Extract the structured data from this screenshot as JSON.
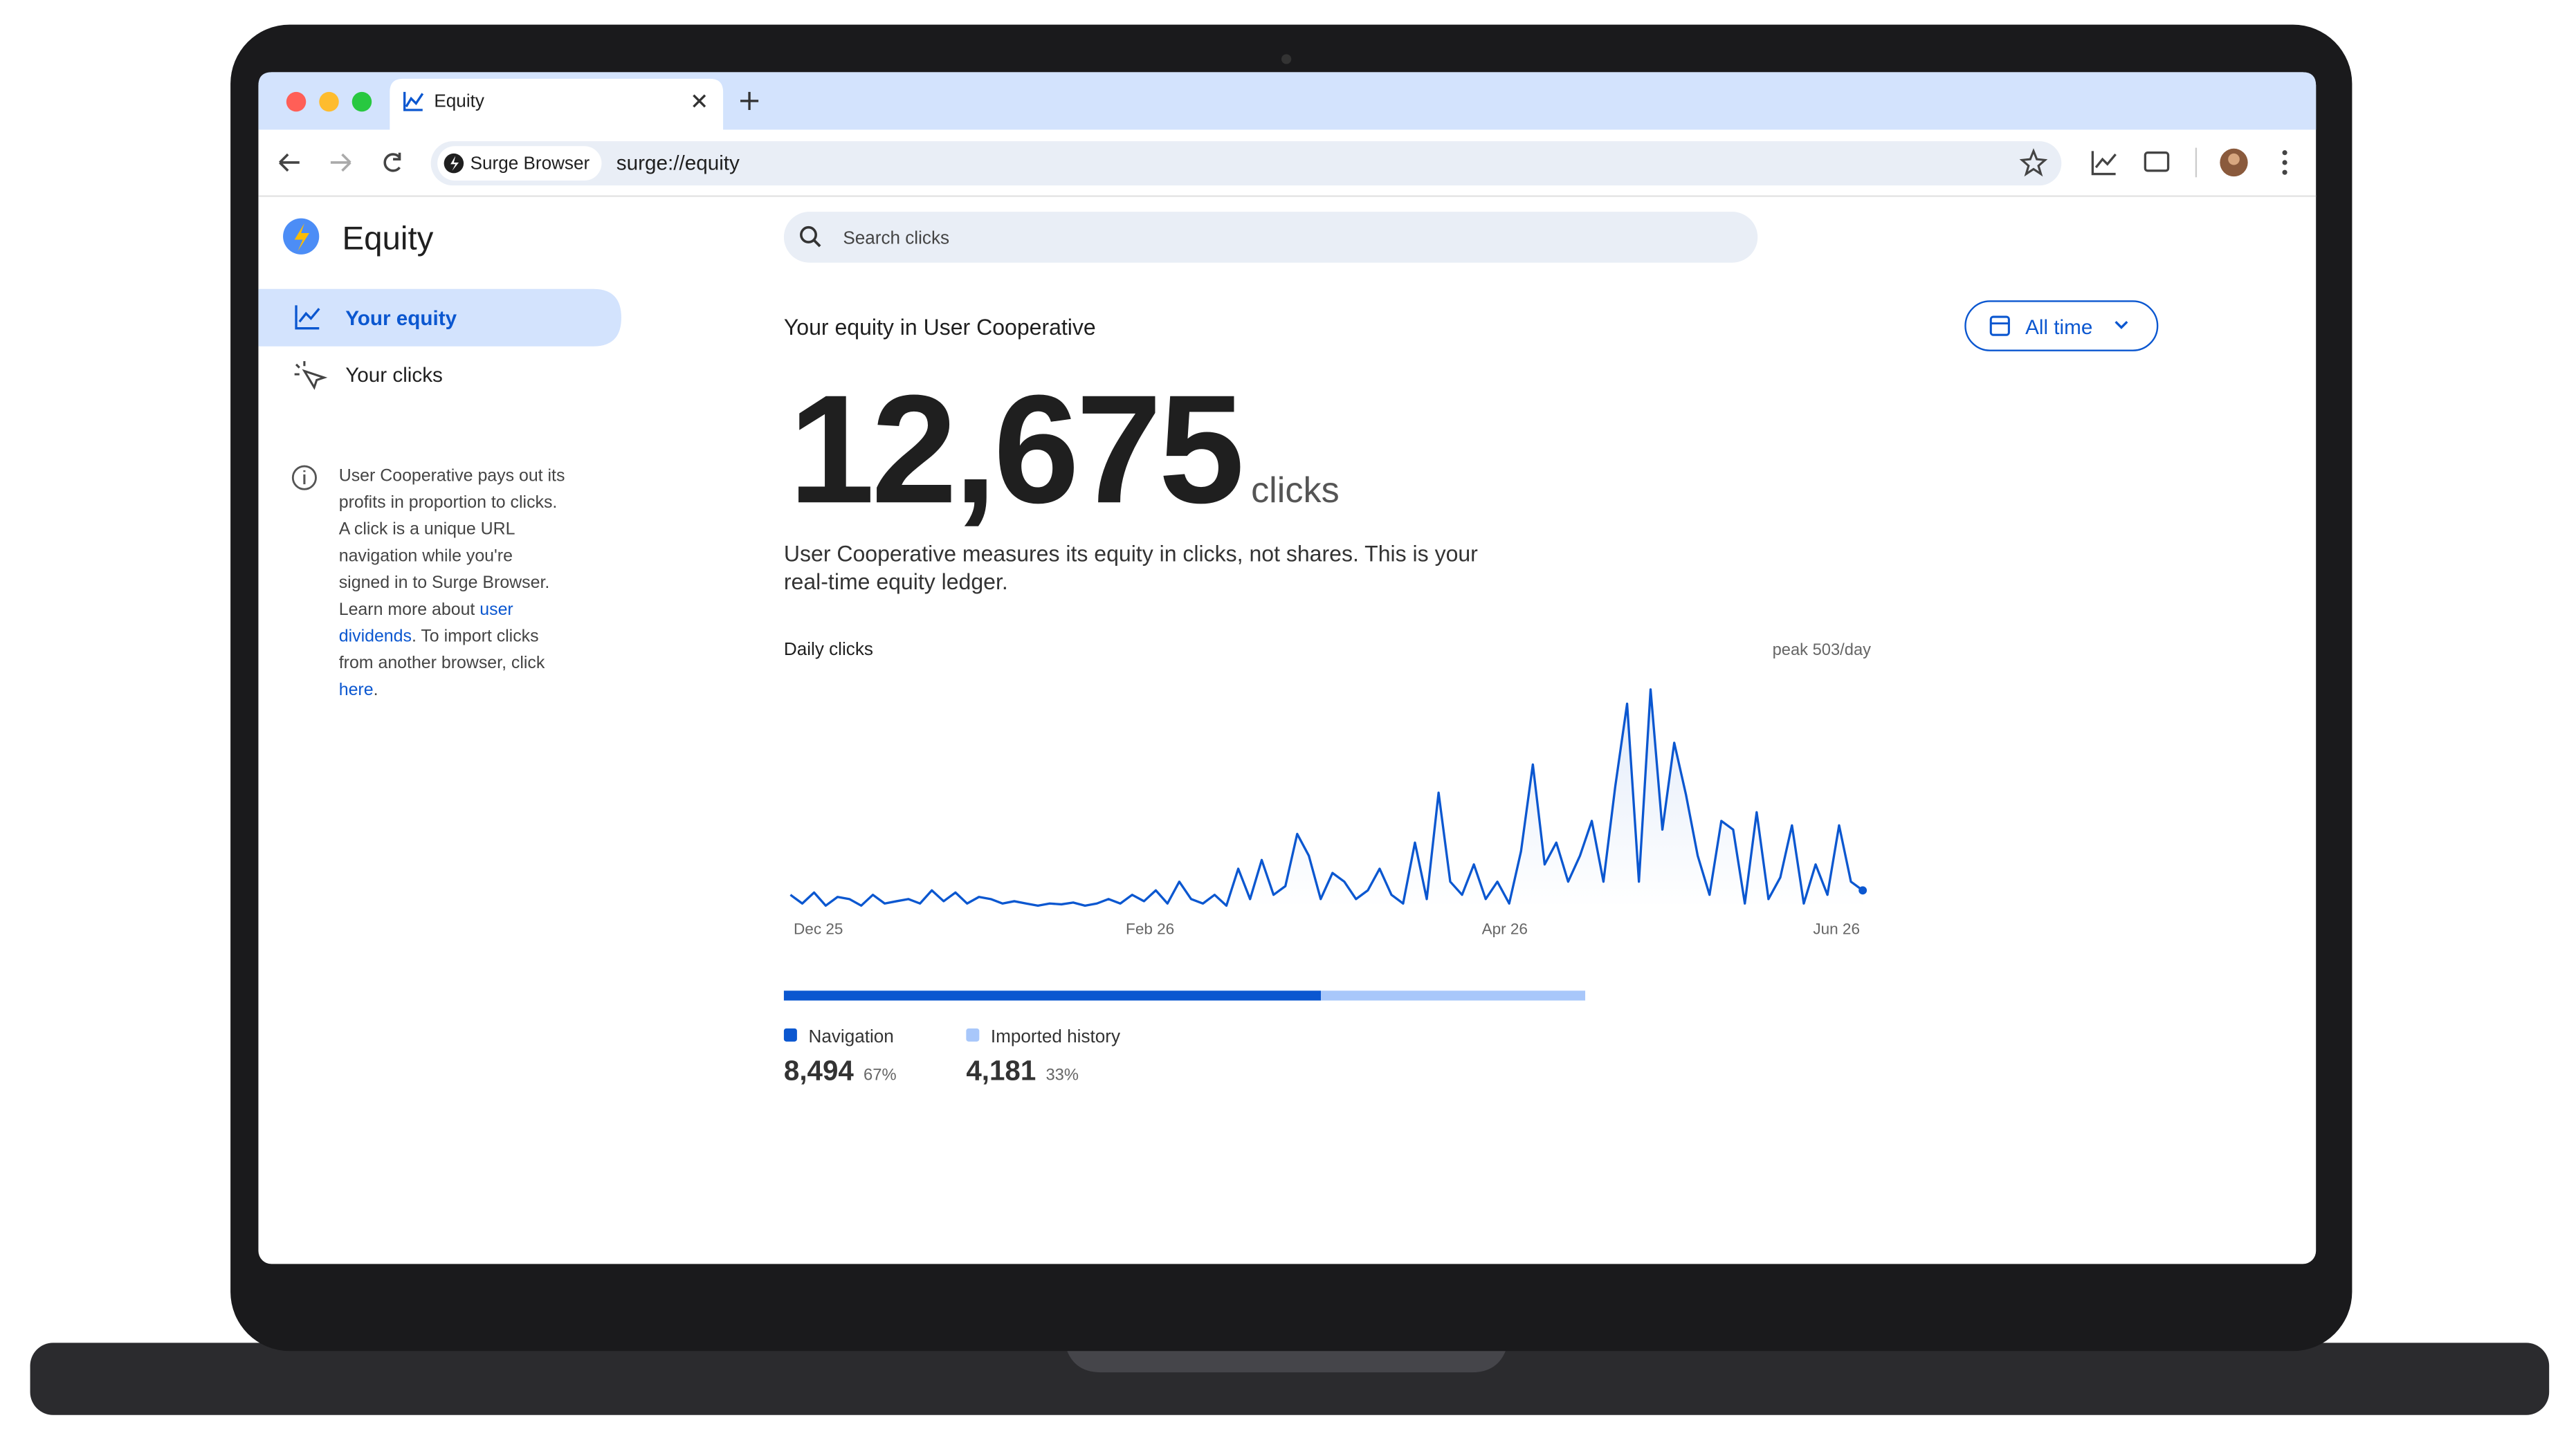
{
  "browser": {
    "tab_title": "Equity",
    "site_chip": "Surge Browser",
    "url": "surge://equity"
  },
  "sidebar": {
    "title": "Equity",
    "items": [
      "Your equity",
      "Your clicks"
    ],
    "info": [
      [
        {
          "text": "User Cooperative pays out its"
        }
      ],
      [
        {
          "text": "profits in proportion to clicks."
        }
      ],
      [
        {
          "text": "A click is a unique URL"
        }
      ],
      [
        {
          "text": "navigation while you're"
        }
      ],
      [
        {
          "text": "signed in to Surge Browser."
        }
      ],
      [
        {
          "text": "Learn more about "
        },
        {
          "text": "user",
          "link": true
        }
      ],
      [
        {
          "text": "dividends",
          "link": true
        },
        {
          "text": ". To import clicks"
        }
      ],
      [
        {
          "text": "from another browser, click"
        }
      ],
      [
        {
          "text": "here",
          "link": true
        },
        {
          "text": "."
        }
      ]
    ]
  },
  "search": {
    "placeholder": "Search clicks"
  },
  "main": {
    "heading": "Your equity in User Cooperative",
    "range_button": "All time",
    "total": "12,675",
    "unit": "clicks",
    "description": [
      "User Cooperative measures its equity in clicks, not shares. This is your",
      "real-time equity ledger."
    ]
  },
  "chart_data": {
    "type": "line",
    "title": "Daily clicks",
    "annotation": "peak 503/day",
    "color": "#0b57d0",
    "x_labels": [
      "Dec 25",
      "Feb 26",
      "Apr 26",
      "Jun 26"
    ],
    "ylim": [
      0,
      503
    ],
    "values": [
      30,
      10,
      35,
      5,
      25,
      20,
      5,
      30,
      10,
      15,
      20,
      10,
      40,
      15,
      35,
      10,
      25,
      20,
      10,
      15,
      10,
      5,
      10,
      8,
      12,
      5,
      10,
      20,
      10,
      30,
      15,
      40,
      10,
      60,
      20,
      10,
      30,
      5,
      90,
      20,
      110,
      30,
      50,
      170,
      120,
      20,
      80,
      60,
      20,
      40,
      90,
      30,
      10,
      150,
      20,
      265,
      60,
      30,
      100,
      20,
      60,
      10,
      130,
      330,
      100,
      150,
      60,
      120,
      200,
      60,
      280,
      470,
      60,
      503,
      180,
      380,
      260,
      120,
      30,
      200,
      180,
      10,
      220,
      20,
      70,
      190,
      10,
      100,
      30,
      190,
      60,
      40
    ]
  },
  "breakdown": {
    "segments": [
      {
        "name": "Navigation",
        "value": 8494,
        "value_label": "8,494",
        "percent_label": "67%",
        "color": "#0b57d0"
      },
      {
        "name": "Imported history",
        "value": 4181,
        "value_label": "4,181",
        "percent_label": "33%",
        "color": "#a8c7fa"
      }
    ]
  }
}
